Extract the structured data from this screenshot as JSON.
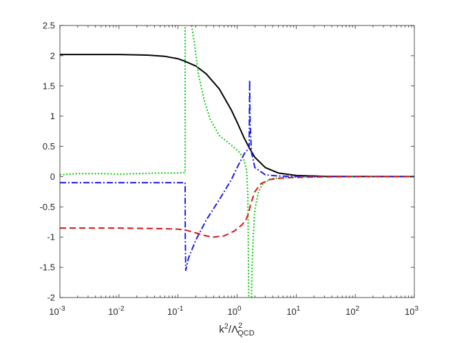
{
  "chart_data": {
    "type": "line",
    "title": "",
    "ylabel": "",
    "xlabel": {
      "base": "k",
      "base_sup": "2",
      "sep": "/",
      "sym": "Λ",
      "sym_sup": "2",
      "sym_sub": "QCD"
    },
    "xscale": "log",
    "xlim": [
      0.001,
      1000
    ],
    "ylim": [
      -2,
      2.5
    ],
    "grid": false,
    "xticks": [
      0.001,
      0.01,
      0.1,
      1,
      10,
      100,
      1000
    ],
    "xtick_labels": [
      {
        "base": "10",
        "exp": "-3"
      },
      {
        "base": "10",
        "exp": "-2"
      },
      {
        "base": "10",
        "exp": "-1"
      },
      {
        "base": "10",
        "exp": "0"
      },
      {
        "base": "10",
        "exp": "1"
      },
      {
        "base": "10",
        "exp": "2"
      },
      {
        "base": "10",
        "exp": "3"
      }
    ],
    "yticks": [
      2.5,
      2,
      1.5,
      1,
      0.5,
      0,
      -0.5,
      -1,
      -1.5,
      -2
    ],
    "ytick_labels": [
      "2.5",
      "2",
      "1.5",
      "1",
      "0.5",
      "0",
      "-0.5",
      "-1",
      "-1.5",
      "-2"
    ],
    "series": [
      {
        "color": "#000000",
        "style": "solid",
        "points": [
          [
            0.001,
            2.02
          ],
          [
            0.003,
            2.02
          ],
          [
            0.01,
            2.02
          ],
          [
            0.03,
            2.01
          ],
          [
            0.06,
            1.99
          ],
          [
            0.1,
            1.95
          ],
          [
            0.13,
            1.91
          ],
          [
            0.2,
            1.83
          ],
          [
            0.3,
            1.7
          ],
          [
            0.5,
            1.45
          ],
          [
            0.8,
            1.1
          ],
          [
            1.0,
            0.9
          ],
          [
            1.3,
            0.65
          ],
          [
            1.6,
            0.48
          ],
          [
            2.0,
            0.32
          ],
          [
            3.0,
            0.15
          ],
          [
            5.0,
            0.06
          ],
          [
            10,
            0.02
          ],
          [
            30,
            0.005
          ],
          [
            100,
            0.002
          ],
          [
            1000,
            0.001
          ]
        ]
      },
      {
        "color": "#00cc00",
        "style": "dotted",
        "points": [
          [
            0.001,
            0.03
          ],
          [
            0.002,
            0.05
          ],
          [
            0.005,
            0.05
          ],
          [
            0.01,
            0.04
          ],
          [
            0.02,
            0.05
          ],
          [
            0.05,
            0.06
          ],
          [
            0.1,
            0.06
          ],
          [
            0.132,
            0.07
          ],
          [
            0.1321,
            2.5
          ]
        ]
      },
      {
        "color": "#00cc00",
        "style": "dotted",
        "points": [
          [
            0.17,
            2.5
          ],
          [
            0.19,
            2.2
          ],
          [
            0.22,
            1.7
          ],
          [
            0.28,
            1.25
          ],
          [
            0.35,
            0.95
          ],
          [
            0.5,
            0.68
          ],
          [
            0.8,
            0.52
          ],
          [
            1.1,
            0.4
          ],
          [
            1.3,
            0.28
          ],
          [
            1.45,
            0.1
          ],
          [
            1.52,
            -0.3
          ],
          [
            1.55,
            -1.2
          ],
          [
            1.57,
            -2.0
          ]
        ]
      },
      {
        "color": "#00cc00",
        "style": "dotted",
        "points": [
          [
            1.75,
            -2.0
          ],
          [
            1.8,
            -1.4
          ],
          [
            1.9,
            -0.9
          ],
          [
            2.0,
            -0.55
          ],
          [
            2.3,
            -0.25
          ],
          [
            2.8,
            -0.1
          ],
          [
            4.0,
            -0.03
          ],
          [
            10,
            -0.01
          ],
          [
            100,
            0.0
          ],
          [
            1000,
            0.0
          ]
        ]
      },
      {
        "color": "#1a1aee",
        "style": "dashdot",
        "points": [
          [
            0.001,
            -0.1
          ],
          [
            0.01,
            -0.1
          ],
          [
            0.1,
            -0.1
          ],
          [
            0.132,
            -0.1
          ],
          [
            0.1325,
            -1.0
          ],
          [
            0.135,
            -1.55
          ],
          [
            0.15,
            -1.35
          ],
          [
            0.2,
            -1.05
          ],
          [
            0.3,
            -0.72
          ],
          [
            0.5,
            -0.38
          ],
          [
            0.8,
            -0.05
          ],
          [
            1.0,
            0.15
          ],
          [
            1.2,
            0.3
          ],
          [
            1.4,
            0.42
          ],
          [
            1.6,
            0.45
          ],
          [
            1.63,
            1.6
          ],
          [
            1.66,
            0.9
          ],
          [
            1.75,
            0.4
          ],
          [
            2.0,
            0.15
          ],
          [
            3.0,
            0.03
          ],
          [
            5.0,
            0.01
          ],
          [
            10,
            0.005
          ],
          [
            100,
            0.002
          ],
          [
            1000,
            0.002
          ]
        ]
      },
      {
        "color": "#dd1111",
        "style": "dashed",
        "points": [
          [
            0.001,
            -0.85
          ],
          [
            0.01,
            -0.85
          ],
          [
            0.05,
            -0.86
          ],
          [
            0.1,
            -0.87
          ],
          [
            0.13,
            -0.88
          ],
          [
            0.2,
            -0.93
          ],
          [
            0.3,
            -0.98
          ],
          [
            0.4,
            -1.0
          ],
          [
            0.6,
            -0.98
          ],
          [
            0.9,
            -0.9
          ],
          [
            1.2,
            -0.8
          ],
          [
            1.4,
            -0.72
          ],
          [
            1.55,
            -0.62
          ],
          [
            1.7,
            -0.45
          ],
          [
            2.0,
            -0.25
          ],
          [
            2.5,
            -0.12
          ],
          [
            3.5,
            -0.05
          ],
          [
            6.0,
            -0.02
          ],
          [
            20,
            -0.005
          ],
          [
            100,
            0.0
          ],
          [
            1000,
            0.0
          ]
        ]
      }
    ]
  }
}
